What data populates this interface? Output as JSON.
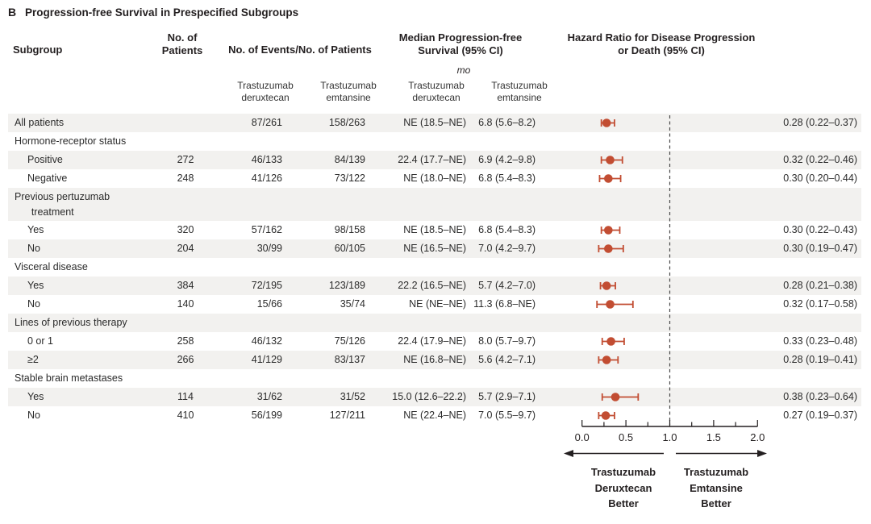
{
  "title": {
    "panel": "B",
    "text": "Progression-free Survival in Prespecified Subgroups"
  },
  "columns": {
    "subgroup": "Subgroup",
    "n_patients": "No. of\nPatients",
    "events": "No. of Events/No. of Patients",
    "median": "Median Progression-free\nSurvival (95% CI)",
    "median_unit": "mo",
    "hazard": "Hazard Ratio for Disease Progression\nor Death (95% CI)",
    "arm_deruxtecan": "Trastuzumab\nderuxtecan",
    "arm_emtansine": "Trastuzumab\nemtansine"
  },
  "chart_data": {
    "type": "forest",
    "x_axis": {
      "range": [
        0.0,
        2.0
      ],
      "ticks": [
        0.0,
        0.5,
        1.0,
        1.5,
        2.0
      ],
      "tick_labels": [
        "0.0",
        "0.5",
        "1.0",
        "1.5",
        "2.0"
      ],
      "minor_step": 0.25,
      "reference_line": 1.0
    },
    "direction_labels": {
      "left": "Trastuzumab\nDeruxtecan\nBetter",
      "right": "Trastuzumab\nEmtansine\nBetter"
    },
    "rows": [
      {
        "type": "data",
        "label": "All patients",
        "indent": false,
        "shaded": true,
        "n": "",
        "events_deruxtecan": "87/261",
        "events_emtansine": "158/263",
        "median_deruxtecan": "NE (18.5–NE)",
        "median_emtansine": "6.8 (5.6–8.2)",
        "hr": 0.28,
        "ci_low": 0.22,
        "ci_high": 0.37,
        "hr_text": "0.28 (0.22–0.37)"
      },
      {
        "type": "group",
        "label": "Hormone-receptor status",
        "shaded": false
      },
      {
        "type": "data",
        "label": "Positive",
        "indent": true,
        "shaded": true,
        "n": "272",
        "events_deruxtecan": "46/133",
        "events_emtansine": "84/139",
        "median_deruxtecan": "22.4 (17.7–NE)",
        "median_emtansine": "6.9 (4.2–9.8)",
        "hr": 0.32,
        "ci_low": 0.22,
        "ci_high": 0.46,
        "hr_text": "0.32 (0.22–0.46)"
      },
      {
        "type": "data",
        "label": "Negative",
        "indent": true,
        "shaded": false,
        "n": "248",
        "events_deruxtecan": "41/126",
        "events_emtansine": "73/122",
        "median_deruxtecan": "NE (18.0–NE)",
        "median_emtansine": "6.8 (5.4–8.3)",
        "hr": 0.3,
        "ci_low": 0.2,
        "ci_high": 0.44,
        "hr_text": "0.30 (0.20–0.44)"
      },
      {
        "type": "group",
        "label": "Previous pertuzumab\n      treatment",
        "two_line": true,
        "shaded": true
      },
      {
        "type": "data",
        "label": "Yes",
        "indent": true,
        "shaded": false,
        "n": "320",
        "events_deruxtecan": "57/162",
        "events_emtansine": "98/158",
        "median_deruxtecan": "NE (18.5–NE)",
        "median_emtansine": "6.8 (5.4–8.3)",
        "hr": 0.3,
        "ci_low": 0.22,
        "ci_high": 0.43,
        "hr_text": "0.30 (0.22–0.43)"
      },
      {
        "type": "data",
        "label": "No",
        "indent": true,
        "shaded": true,
        "n": "204",
        "events_deruxtecan": "30/99",
        "events_emtansine": "60/105",
        "median_deruxtecan": "NE (16.5–NE)",
        "median_emtansine": "7.0 (4.2–9.7)",
        "hr": 0.3,
        "ci_low": 0.19,
        "ci_high": 0.47,
        "hr_text": "0.30 (0.19–0.47)"
      },
      {
        "type": "group",
        "label": "Visceral disease",
        "shaded": false
      },
      {
        "type": "data",
        "label": "Yes",
        "indent": true,
        "shaded": true,
        "n": "384",
        "events_deruxtecan": "72/195",
        "events_emtansine": "123/189",
        "median_deruxtecan": "22.2 (16.5–NE)",
        "median_emtansine": "5.7 (4.2–7.0)",
        "hr": 0.28,
        "ci_low": 0.21,
        "ci_high": 0.38,
        "hr_text": "0.28 (0.21–0.38)"
      },
      {
        "type": "data",
        "label": "No",
        "indent": true,
        "shaded": false,
        "n": "140",
        "events_deruxtecan": "15/66",
        "events_emtansine": "35/74",
        "median_deruxtecan": "NE (NE–NE)",
        "median_emtansine": "11.3 (6.8–NE)",
        "hr": 0.32,
        "ci_low": 0.17,
        "ci_high": 0.58,
        "hr_text": "0.32 (0.17–0.58)"
      },
      {
        "type": "group",
        "label": "Lines of previous therapy",
        "shaded": true
      },
      {
        "type": "data",
        "label": "0 or 1",
        "indent": true,
        "shaded": false,
        "n": "258",
        "events_deruxtecan": "46/132",
        "events_emtansine": "75/126",
        "median_deruxtecan": "22.4 (17.9–NE)",
        "median_emtansine": "8.0 (5.7–9.7)",
        "hr": 0.33,
        "ci_low": 0.23,
        "ci_high": 0.48,
        "hr_text": "0.33 (0.23–0.48)"
      },
      {
        "type": "data",
        "label": "≥2",
        "indent": true,
        "shaded": true,
        "n": "266",
        "events_deruxtecan": "41/129",
        "events_emtansine": "83/137",
        "median_deruxtecan": "NE (16.8–NE)",
        "median_emtansine": "5.6 (4.2–7.1)",
        "hr": 0.28,
        "ci_low": 0.19,
        "ci_high": 0.41,
        "hr_text": "0.28 (0.19–0.41)"
      },
      {
        "type": "group",
        "label": "Stable brain metastases",
        "shaded": false
      },
      {
        "type": "data",
        "label": "Yes",
        "indent": true,
        "shaded": true,
        "n": "114",
        "events_deruxtecan": "31/62",
        "events_emtansine": "31/52",
        "median_deruxtecan": "15.0 (12.6–22.2)",
        "median_emtansine": "5.7 (2.9–7.1)",
        "hr": 0.38,
        "ci_low": 0.23,
        "ci_high": 0.64,
        "hr_text": "0.38 (0.23–0.64)"
      },
      {
        "type": "data",
        "label": "No",
        "indent": true,
        "shaded": false,
        "n": "410",
        "events_deruxtecan": "56/199",
        "events_emtansine": "127/211",
        "median_deruxtecan": "NE (22.4–NE)",
        "median_emtansine": "7.0 (5.5–9.7)",
        "hr": 0.27,
        "ci_low": 0.19,
        "ci_high": 0.37,
        "hr_text": "0.27 (0.19–0.37)"
      }
    ]
  },
  "colors": {
    "marker": "#c24d32",
    "stripe": "#f2f1ef",
    "axis": "#231f20",
    "reference_dash": "#4a4a4a"
  }
}
